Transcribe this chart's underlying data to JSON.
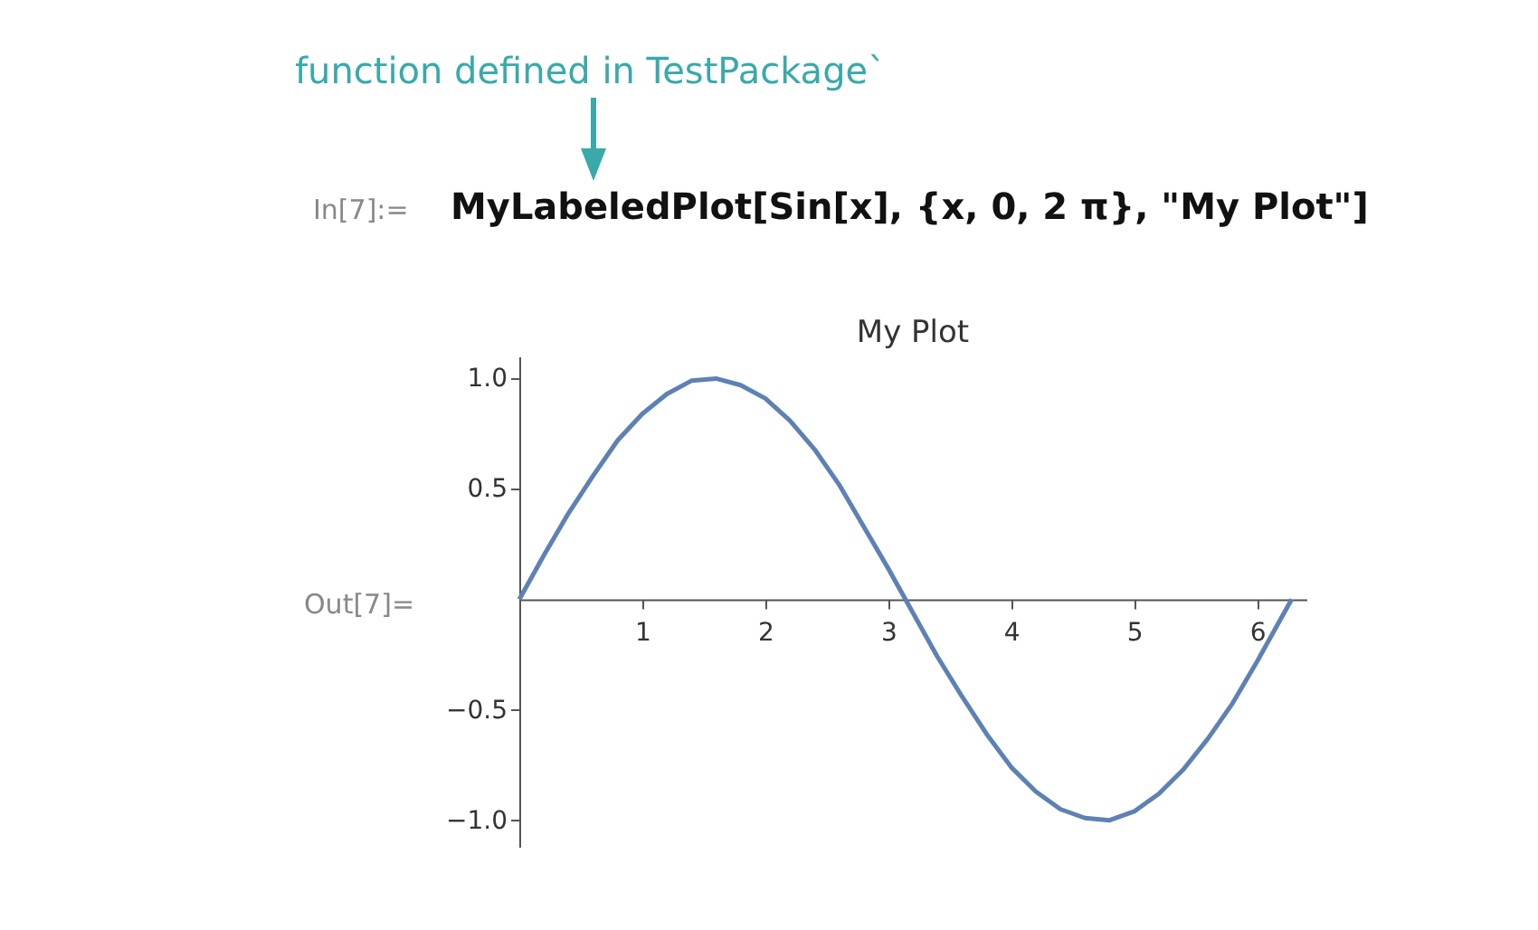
{
  "chart_data": {
    "type": "line",
    "title": "My Plot",
    "annotations": [
      "function defined in TestPackage`",
      "In[7]:=",
      "MyLabeledPlot[Sin[x], {x, 0, 2 π}, \"My Plot\"]",
      "Out[7]="
    ],
    "x": [
      0,
      0.2,
      0.4,
      0.6,
      0.8,
      1.0,
      1.2,
      1.4,
      1.6,
      1.8,
      2.0,
      2.2,
      2.4,
      2.6,
      2.8,
      3.0,
      3.2,
      3.4,
      3.6,
      3.8,
      4.0,
      4.2,
      4.4,
      4.6,
      4.8,
      5.0,
      5.2,
      5.4,
      5.6,
      5.8,
      6.0,
      6.2,
      6.28
    ],
    "series": [
      {
        "color": "#5e81b5",
        "values": [
          0,
          0.2,
          0.39,
          0.56,
          0.72,
          0.84,
          0.93,
          0.99,
          1.0,
          0.97,
          0.91,
          0.81,
          0.68,
          0.52,
          0.33,
          0.14,
          -0.06,
          -0.26,
          -0.44,
          -0.61,
          -0.76,
          -0.87,
          -0.95,
          -0.99,
          -1.0,
          -0.96,
          -0.88,
          -0.77,
          -0.63,
          -0.47,
          -0.28,
          -0.08,
          0
        ]
      }
    ],
    "xlim": [
      0,
      6.4
    ],
    "xticks": [
      1,
      2,
      3,
      4,
      5,
      6
    ],
    "ylim": [
      -1.12,
      1.1
    ],
    "yticks": [
      {
        "value": 1,
        "label": "1.0"
      },
      {
        "value": 0.5,
        "label": "0.5"
      },
      {
        "value": -0.5,
        "label": "−0.5"
      },
      {
        "value": -1,
        "label": "−1.0"
      }
    ],
    "grid": false,
    "marker": "none",
    "line_style": "solid"
  }
}
